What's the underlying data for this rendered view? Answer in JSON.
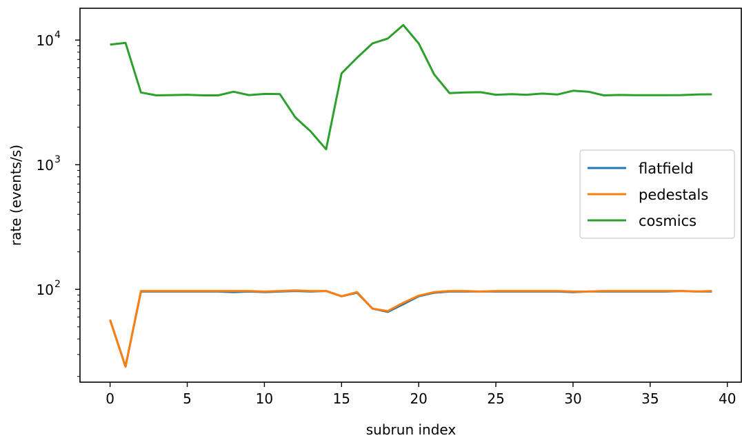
{
  "chart_data": {
    "type": "line",
    "xlabel": "subrun index",
    "ylabel": "rate (events/s)",
    "yscale": "log",
    "xlim": [
      -1.95,
      40.95
    ],
    "ylim": [
      18,
      18000
    ],
    "x_ticks": [
      0,
      5,
      10,
      15,
      20,
      25,
      30,
      35,
      40
    ],
    "y_ticks": [
      {
        "value": 100,
        "base": "10",
        "exp": "2"
      },
      {
        "value": 1000,
        "base": "10",
        "exp": "3"
      },
      {
        "value": 10000,
        "base": "10",
        "exp": "4"
      }
    ],
    "grid": false,
    "legend": {
      "position": "center-right"
    },
    "x": [
      0,
      1,
      2,
      3,
      4,
      5,
      6,
      7,
      8,
      9,
      10,
      11,
      12,
      13,
      14,
      15,
      16,
      17,
      18,
      19,
      20,
      21,
      22,
      23,
      24,
      25,
      26,
      27,
      28,
      29,
      30,
      31,
      32,
      33,
      34,
      35,
      36,
      37,
      38,
      39
    ],
    "series": [
      {
        "name": "flatfield",
        "color": "#1f77b4",
        "values": [
          57,
          24,
          96,
          96,
          96,
          96,
          96,
          96,
          95,
          96,
          95,
          96,
          97,
          96,
          97,
          88,
          94,
          70,
          66,
          76,
          88,
          94,
          96,
          96,
          96,
          96,
          96,
          96,
          96,
          96,
          95,
          96,
          96,
          96,
          96,
          96,
          96,
          97,
          96,
          96
        ]
      },
      {
        "name": "pedestals",
        "color": "#ff7f0e",
        "values": [
          57,
          24,
          97,
          97,
          97,
          97,
          97,
          97,
          97,
          97,
          96,
          97,
          98,
          97,
          97,
          88,
          95,
          70,
          67,
          78,
          89,
          95,
          97,
          97,
          96,
          97,
          97,
          97,
          97,
          97,
          96,
          96,
          97,
          97,
          97,
          97,
          97,
          97,
          96,
          97
        ]
      },
      {
        "name": "cosmics",
        "color": "#2ca02c",
        "values": [
          9200,
          9500,
          3800,
          3600,
          3620,
          3640,
          3600,
          3600,
          3850,
          3620,
          3700,
          3690,
          2400,
          1850,
          1330,
          5400,
          7200,
          9400,
          10300,
          13200,
          9400,
          5300,
          3750,
          3800,
          3820,
          3640,
          3680,
          3640,
          3720,
          3660,
          3920,
          3850,
          3600,
          3630,
          3610,
          3610,
          3610,
          3620,
          3660,
          3670
        ]
      }
    ]
  }
}
